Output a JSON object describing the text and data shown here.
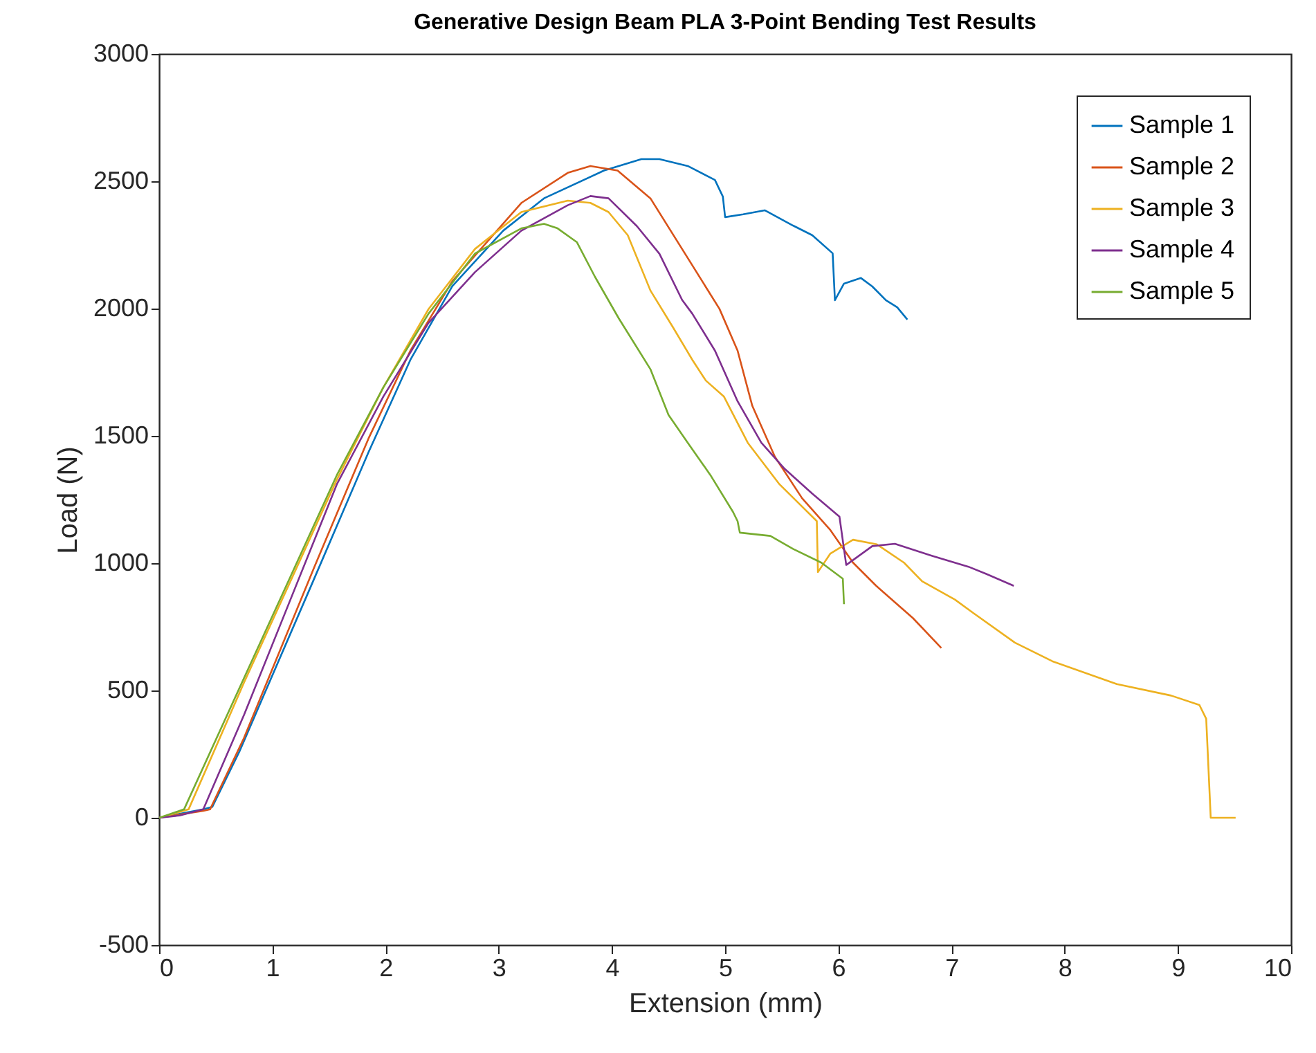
{
  "chart_data": {
    "type": "line",
    "title": "Generative Design Beam PLA 3-Point Bending Test Results",
    "xlabel": "Extension (mm)",
    "ylabel": "Load (N)",
    "xlim": [
      0,
      10
    ],
    "ylim": [
      -500,
      3000
    ],
    "xticks": [
      0,
      1,
      2,
      3,
      4,
      5,
      6,
      7,
      8,
      9,
      10
    ],
    "yticks": [
      -500,
      0,
      500,
      1000,
      1500,
      2000,
      2500,
      3000
    ],
    "grid": false,
    "legend": "top right",
    "line_style": "solid",
    "marker": "none",
    "series": [
      {
        "name": "Sample 1",
        "color": "#0072bd",
        "x": [
          0,
          0.39,
          0.47,
          0.71,
          1.36,
          1.85,
          2.22,
          2.59,
          3.04,
          3.4,
          3.93,
          4.26,
          4.42,
          4.67,
          4.91,
          4.98,
          5.0,
          5.16,
          5.35,
          5.6,
          5.77,
          5.95,
          5.97,
          6.05,
          6.2,
          6.3,
          6.42,
          6.52,
          6.61
        ],
        "values": [
          0,
          33,
          43,
          261,
          929,
          1436,
          1799,
          2088,
          2306,
          2433,
          2542,
          2587,
          2587,
          2560,
          2505,
          2440,
          2359,
          2370,
          2386,
          2326,
          2288,
          2217,
          2033,
          2098,
          2120,
          2087,
          2033,
          2005,
          1957
        ]
      },
      {
        "name": "Sample 2",
        "color": "#d95319",
        "x": [
          0,
          0.39,
          0.45,
          0.75,
          1.37,
          1.85,
          2.22,
          2.59,
          3.2,
          3.61,
          3.81,
          4.05,
          4.34,
          4.62,
          4.95,
          5.11,
          5.24,
          5.44,
          5.68,
          5.93,
          6.13,
          6.33,
          6.66,
          6.91
        ],
        "values": [
          0,
          27,
          33,
          314,
          984,
          1490,
          1835,
          2107,
          2415,
          2533,
          2560,
          2542,
          2433,
          2234,
          1999,
          1835,
          1618,
          1418,
          1255,
          1130,
          1002,
          913,
          784,
          667
        ]
      },
      {
        "name": "Sample 3",
        "color": "#edb120",
        "x": [
          0,
          0.26,
          0.75,
          1.16,
          1.57,
          1.98,
          2.38,
          2.79,
          3.2,
          3.61,
          3.81,
          3.97,
          4.14,
          4.34,
          4.54,
          4.71,
          4.83,
          4.99,
          5.2,
          5.48,
          5.81,
          5.82,
          5.93,
          6.13,
          6.34,
          6.58,
          6.74,
          7.03,
          7.19,
          7.56,
          7.89,
          8.46,
          8.94,
          9.19,
          9.25,
          9.29,
          9.51
        ],
        "values": [
          0,
          33,
          531,
          929,
          1328,
          1690,
          1998,
          2234,
          2379,
          2424,
          2415,
          2379,
          2288,
          2071,
          1926,
          1799,
          1717,
          1654,
          1473,
          1310,
          1165,
          965,
          1038,
          1092,
          1074,
          1002,
          929,
          857,
          805,
          688,
          615,
          525,
          480,
          443,
          389,
          0,
          0
        ]
      },
      {
        "name": "Sample 4",
        "color": "#7e2f8e",
        "x": [
          0,
          0.18,
          0.39,
          0.75,
          1.16,
          1.57,
          1.98,
          2.38,
          2.79,
          3.2,
          3.61,
          3.81,
          3.97,
          4.22,
          4.42,
          4.62,
          4.71,
          4.91,
          5.11,
          5.32,
          5.52,
          5.77,
          6.01,
          6.07,
          6.3,
          6.5,
          6.82,
          7.15,
          7.31,
          7.55
        ],
        "values": [
          0,
          9,
          33,
          404,
          857,
          1310,
          1654,
          1944,
          2143,
          2306,
          2406,
          2442,
          2433,
          2324,
          2215,
          2034,
          1980,
          1835,
          1636,
          1473,
          1373,
          1273,
          1183,
          993,
          1067,
          1076,
          1030,
          986,
          957,
          911
        ]
      },
      {
        "name": "Sample 5",
        "color": "#77ac30",
        "x": [
          0,
          0.22,
          0.75,
          1.16,
          1.57,
          1.98,
          2.38,
          2.79,
          3.2,
          3.4,
          3.52,
          3.69,
          3.85,
          4.06,
          4.34,
          4.5,
          4.67,
          4.87,
          5.07,
          5.11,
          5.13,
          5.4,
          5.6,
          5.85,
          6.04,
          6.05
        ],
        "values": [
          0,
          33,
          549,
          947,
          1346,
          1690,
          1980,
          2216,
          2315,
          2333,
          2315,
          2261,
          2125,
          1962,
          1762,
          1582,
          1473,
          1346,
          1201,
          1165,
          1120,
          1107,
          1056,
          1002,
          939,
          839
        ]
      }
    ]
  }
}
